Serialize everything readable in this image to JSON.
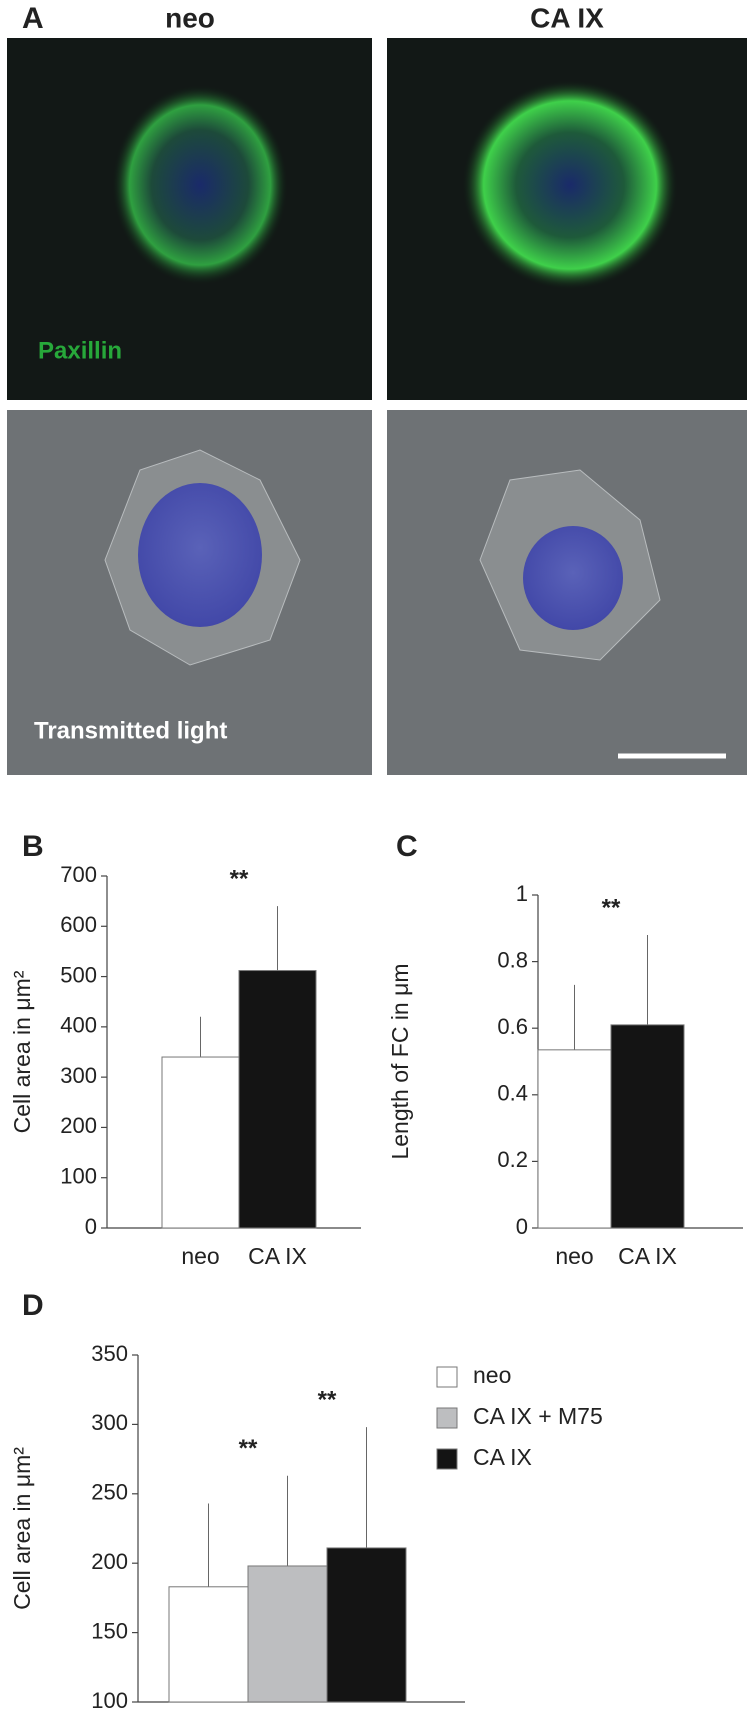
{
  "panel_a": {
    "label": "A",
    "columns": [
      "neo",
      "CA IX"
    ],
    "top_label": "Paxillin",
    "bottom_label": "Transmitted light"
  },
  "chart_data": [
    {
      "type": "bar",
      "panel_label": "B",
      "ylabel": "Cell area in μm²",
      "categories": [
        "neo",
        "CA IX"
      ],
      "values": [
        340,
        512
      ],
      "errors": [
        80,
        128
      ],
      "colors": [
        "#ffffff",
        "#141414"
      ],
      "annotations": [
        null,
        "**"
      ],
      "ylim": [
        0,
        700
      ],
      "yticks": [
        0,
        100,
        200,
        300,
        400,
        500,
        600,
        700
      ]
    },
    {
      "type": "bar",
      "panel_label": "C",
      "ylabel": "Length of FC in μm",
      "categories": [
        "neo",
        "CA IX"
      ],
      "values": [
        0.535,
        0.61
      ],
      "errors": [
        0.195,
        0.27
      ],
      "colors": [
        "#ffffff",
        "#141414"
      ],
      "annotations": [
        null,
        "**"
      ],
      "ylim": [
        0,
        1
      ],
      "yticks": [
        0,
        0.2,
        0.4,
        0.6,
        0.8,
        1
      ]
    },
    {
      "type": "bar",
      "panel_label": "D",
      "ylabel": "Cell area in μm²",
      "categories": [
        "neo",
        "CA IX + M75",
        "CA IX"
      ],
      "values": [
        183,
        198,
        211
      ],
      "errors": [
        60,
        65,
        87
      ],
      "colors": [
        "#ffffff",
        "#bdbec0",
        "#141414"
      ],
      "annotations": [
        null,
        "**",
        "**"
      ],
      "ylim": [
        100,
        350
      ],
      "yticks": [
        100,
        150,
        200,
        250,
        300,
        350
      ],
      "legend": "right"
    }
  ]
}
